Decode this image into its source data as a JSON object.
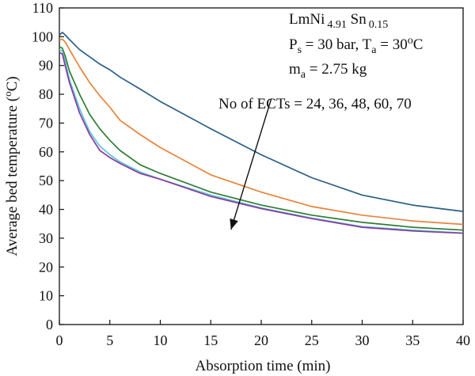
{
  "chart_data": {
    "type": "line",
    "xlabel": "Absorption time (min)",
    "ylabel": "Average bed temperature (oC)",
    "xlim": [
      0,
      40
    ],
    "ylim": [
      0,
      110
    ],
    "xticks": [
      0,
      5,
      10,
      15,
      20,
      25,
      30,
      35,
      40
    ],
    "yticks": [
      0,
      10,
      20,
      30,
      40,
      50,
      60,
      70,
      80,
      90,
      100,
      110
    ],
    "grid": false,
    "legend": "none",
    "annotation": {
      "line1": {
        "base": "LmNi",
        "sub1": "4.91",
        "mid": " Sn",
        "sub2": "0.15"
      },
      "line2": {
        "p": "P",
        "p_sub": "s",
        "p_rest": " = 30 bar, T",
        "t_sub": "a",
        "t_rest": " = 30",
        "t_sup": "o",
        "t_end": "C"
      },
      "line3": {
        "m": "m",
        "m_sub": "a",
        "m_rest": " = 2.75 kg"
      },
      "ects": "No of ECTs = 24, 36, 48, 60, 70"
    },
    "arrow": {
      "from": [
        21.0,
        78.5
      ],
      "to": [
        17.0,
        33.0
      ]
    },
    "series": [
      {
        "color": "#2a5f86",
        "x": [
          0,
          0.3,
          0.6,
          1,
          2,
          3,
          4,
          5,
          6,
          8,
          10,
          15,
          20,
          25,
          30,
          35,
          40
        ],
        "y": [
          100.5,
          101.5,
          100.5,
          99,
          95.5,
          93,
          90.5,
          88.5,
          86,
          81.8,
          77.5,
          68,
          59,
          51,
          45,
          41.5,
          39.3
        ]
      },
      {
        "color": "#e8833a",
        "x": [
          0,
          0.3,
          0.6,
          1,
          2,
          3,
          4,
          5,
          6,
          8,
          10,
          15,
          20,
          25,
          30,
          35,
          40
        ],
        "y": [
          98.8,
          99.2,
          98,
          95.5,
          89.5,
          84,
          79.5,
          75.5,
          71,
          66,
          61.5,
          52,
          46,
          41,
          38,
          36,
          34.8
        ]
      },
      {
        "color": "#2e7d32",
        "x": [
          0,
          0.3,
          0.6,
          1,
          2,
          3,
          4,
          5,
          6,
          8,
          10,
          15,
          20,
          25,
          30,
          35,
          40
        ],
        "y": [
          96.5,
          96,
          93,
          88,
          80,
          73,
          68,
          64,
          60.5,
          55.5,
          52.5,
          46,
          41.5,
          38,
          35.5,
          33.8,
          32.8
        ]
      },
      {
        "color": "#5bc6d6",
        "x": [
          0,
          0.3,
          0.6,
          1,
          2,
          3,
          4,
          5,
          6,
          8,
          10,
          15,
          20,
          25,
          30,
          35,
          40
        ],
        "y": [
          95.5,
          95,
          91,
          85,
          75,
          67,
          62,
          59,
          56.5,
          53,
          50.5,
          45,
          40.5,
          37,
          34,
          32.8,
          31.8
        ]
      },
      {
        "color": "#8a3aa0",
        "x": [
          0,
          0.3,
          0.6,
          1,
          2,
          3,
          4,
          5,
          6,
          8,
          10,
          15,
          20,
          25,
          30,
          35,
          40
        ],
        "y": [
          94.5,
          94,
          89.5,
          84,
          73.5,
          66,
          60.5,
          58,
          56,
          52.5,
          50.5,
          44.5,
          40.3,
          36.8,
          33.8,
          32.5,
          31.7
        ]
      }
    ]
  }
}
